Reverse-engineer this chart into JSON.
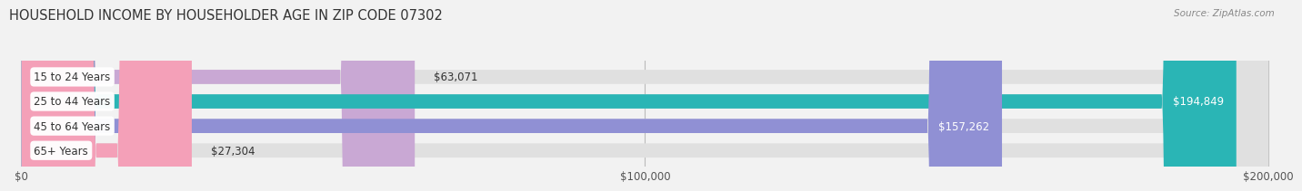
{
  "title": "HOUSEHOLD INCOME BY HOUSEHOLDER AGE IN ZIP CODE 07302",
  "source": "Source: ZipAtlas.com",
  "categories": [
    "15 to 24 Years",
    "25 to 44 Years",
    "45 to 64 Years",
    "65+ Years"
  ],
  "values": [
    63071,
    194849,
    157262,
    27304
  ],
  "bar_colors": [
    "#c9a8d4",
    "#2ab5b5",
    "#9090d4",
    "#f4a0b8"
  ],
  "label_colors": [
    "#333333",
    "#ffffff",
    "#ffffff",
    "#333333"
  ],
  "max_value": 200000,
  "tick_values": [
    0,
    100000,
    200000
  ],
  "tick_labels": [
    "$0",
    "$100,000",
    "$200,000"
  ],
  "value_labels": [
    "$63,071",
    "$194,849",
    "$157,262",
    "$27,304"
  ],
  "background_color": "#f2f2f2",
  "bar_bg": "#e0e0e0",
  "title_fontsize": 10.5,
  "label_fontsize": 8.5,
  "source_fontsize": 7.5
}
